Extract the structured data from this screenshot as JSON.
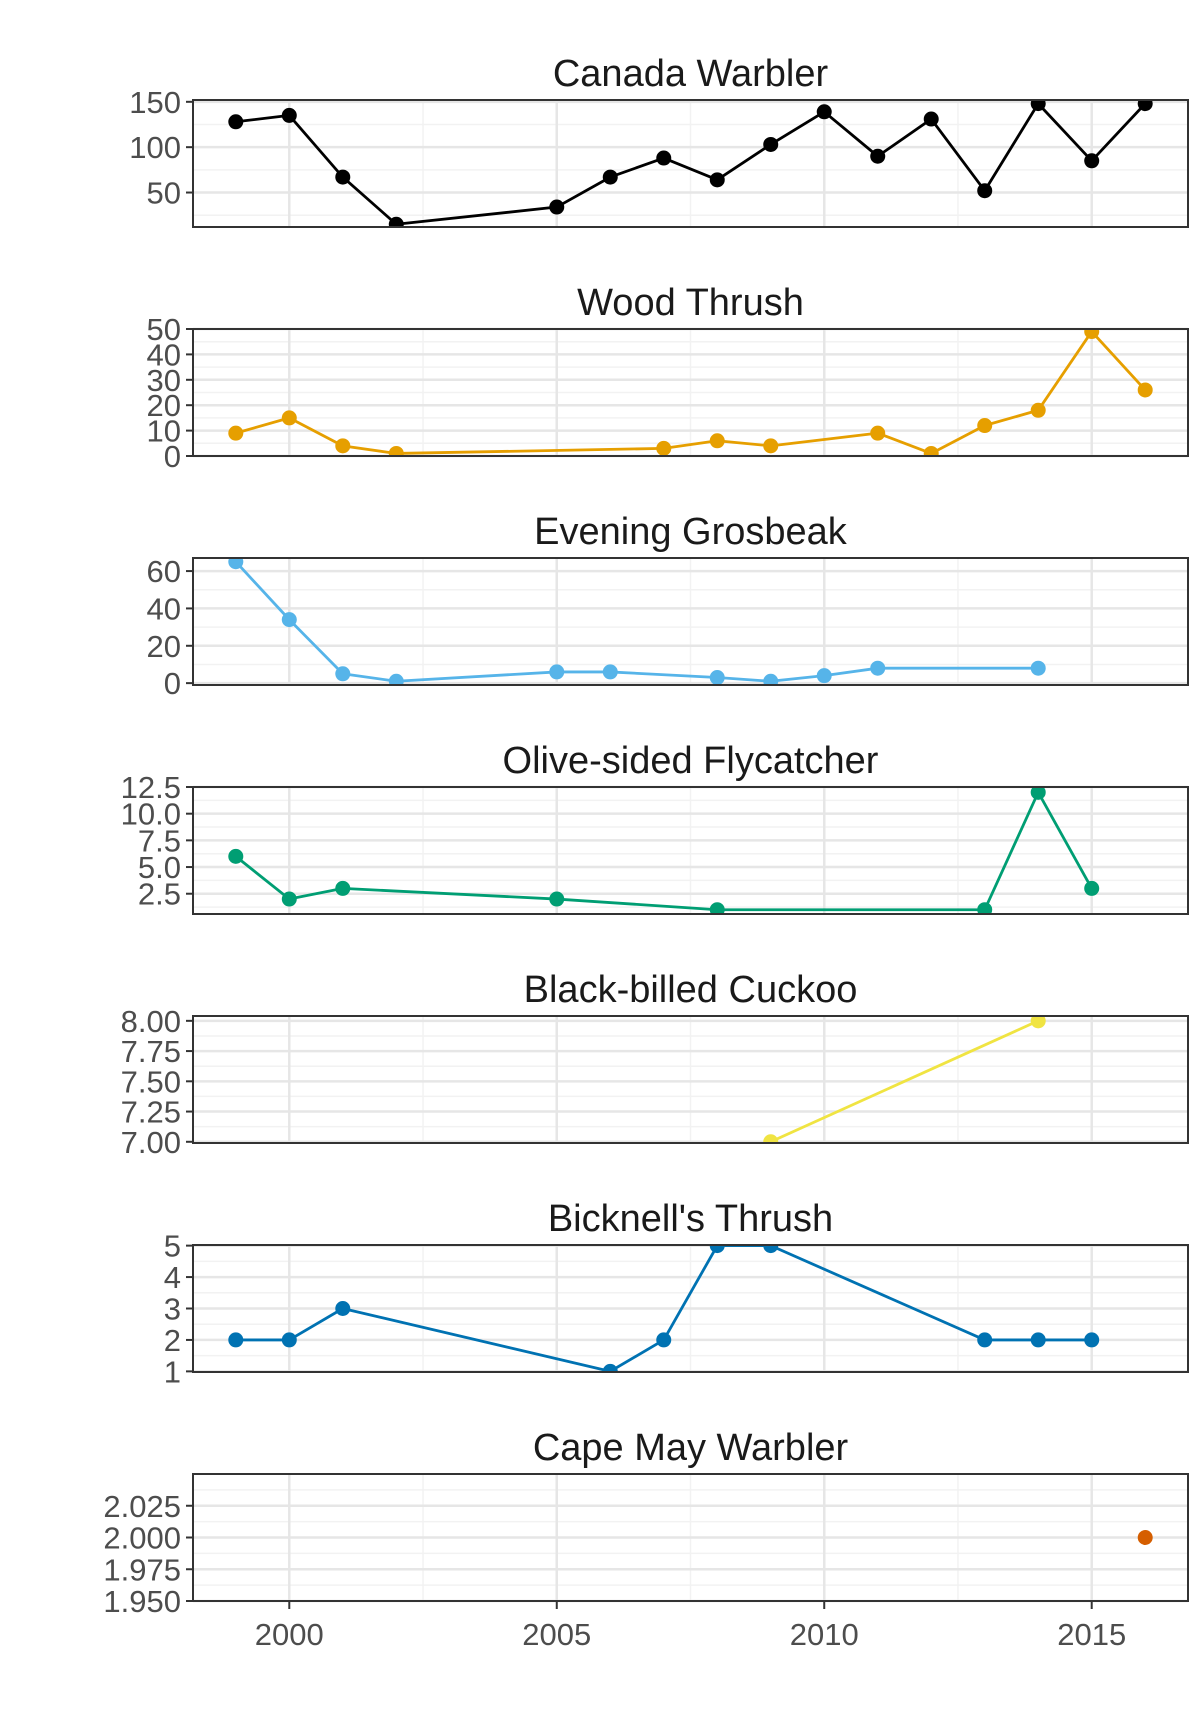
{
  "chart_data": [
    {
      "type": "line",
      "title": "Canada Warbler",
      "color": "#000000",
      "ylim": [
        12,
        152
      ],
      "yticks": [
        50,
        100,
        150
      ],
      "ytick_labels": [
        "50",
        "100",
        "150"
      ],
      "x": [
        1999,
        2000,
        2001,
        2002,
        2005,
        2006,
        2007,
        2008,
        2009,
        2010,
        2011,
        2012,
        2013,
        2014,
        2015,
        2016
      ],
      "values": [
        128,
        135,
        67,
        15,
        34,
        67,
        88,
        64,
        103,
        139,
        90,
        131,
        52,
        148,
        85,
        148
      ]
    },
    {
      "type": "line",
      "title": "Wood Thrush",
      "color": "#E69F00",
      "ylim": [
        0,
        50
      ],
      "yticks": [
        0,
        10,
        20,
        30,
        40,
        50
      ],
      "ytick_labels": [
        "0",
        "10",
        "20",
        "30",
        "40",
        "50"
      ],
      "x": [
        1999,
        2000,
        2001,
        2002,
        2007,
        2008,
        2009,
        2011,
        2012,
        2013,
        2014,
        2015,
        2016
      ],
      "values": [
        9,
        15,
        4,
        1,
        3,
        6,
        4,
        9,
        1,
        12,
        18,
        49,
        26
      ]
    },
    {
      "type": "line",
      "title": "Evening Grosbeak",
      "color": "#56B4E9",
      "ylim": [
        -1,
        67
      ],
      "yticks": [
        0,
        20,
        40,
        60
      ],
      "ytick_labels": [
        "0",
        "20",
        "40",
        "60"
      ],
      "x": [
        1999,
        2000,
        2001,
        2002,
        2005,
        2006,
        2008,
        2009,
        2010,
        2011,
        2014
      ],
      "values": [
        65,
        34,
        5,
        1,
        6,
        6,
        3,
        1,
        4,
        8,
        8
      ]
    },
    {
      "type": "line",
      "title": "Olive-sided Flycatcher",
      "color": "#009E73",
      "ylim": [
        0.6,
        12.5
      ],
      "yticks": [
        2.5,
        5.0,
        7.5,
        10.0,
        12.5
      ],
      "ytick_labels": [
        "2.5",
        "5.0",
        "7.5",
        "10.0",
        "12.5"
      ],
      "x": [
        1999,
        2000,
        2001,
        2005,
        2008,
        2013,
        2014,
        2015
      ],
      "values": [
        6,
        2,
        3,
        2,
        1,
        1,
        12,
        3
      ]
    },
    {
      "type": "line",
      "title": "Black-billed Cuckoo",
      "color": "#F0E442",
      "ylim": [
        6.99,
        8.04
      ],
      "yticks": [
        7.0,
        7.25,
        7.5,
        7.75,
        8.0
      ],
      "ytick_labels": [
        "7.00",
        "7.25",
        "7.50",
        "7.75",
        "8.00"
      ],
      "x": [
        2009,
        2014
      ],
      "values": [
        7,
        8
      ]
    },
    {
      "type": "line",
      "title": "Bicknell's Thrush",
      "color": "#0072B2",
      "ylim": [
        0.98,
        5.02
      ],
      "yticks": [
        1,
        2,
        3,
        4,
        5
      ],
      "ytick_labels": [
        "1",
        "2",
        "3",
        "4",
        "5"
      ],
      "x": [
        1999,
        2000,
        2001,
        2006,
        2007,
        2008,
        2009,
        2013,
        2014,
        2015
      ],
      "values": [
        2,
        2,
        3,
        1,
        2,
        5,
        5,
        2,
        2,
        2
      ]
    },
    {
      "type": "scatter",
      "title": "Cape May Warbler",
      "color": "#D55E00",
      "ylim": [
        1.95,
        2.05
      ],
      "yticks": [
        1.95,
        1.975,
        2.0,
        2.025
      ],
      "ytick_labels": [
        "1.950",
        "1.975",
        "2.000",
        "2.025"
      ],
      "x": [
        2016
      ],
      "values": [
        2
      ]
    }
  ],
  "x_axis": {
    "xlim": [
      1998.2,
      2016.8
    ],
    "ticks": [
      2000,
      2005,
      2010,
      2015
    ],
    "tick_labels": [
      "2000",
      "2005",
      "2010",
      "2015"
    ],
    "minor_ticks": [
      2002.5,
      2007.5,
      2012.5
    ]
  }
}
